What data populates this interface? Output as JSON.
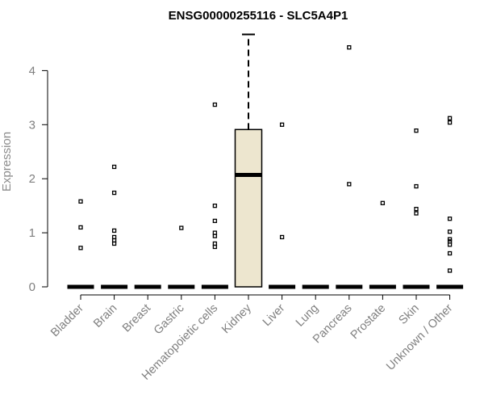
{
  "chart_data": {
    "type": "box",
    "title": "ENSG00000255116 - SLC5A4P1",
    "xlabel": "",
    "ylabel": "Expression",
    "ylim": [
      0,
      4.7
    ],
    "y_ticks": [
      0,
      1,
      2,
      3,
      4
    ],
    "grid": false,
    "categories": [
      "Bladder",
      "Brain",
      "Breast",
      "Gastric",
      "Hematopoietic cells",
      "Kidney",
      "Liver",
      "Lung",
      "Pancreas",
      "Prostate",
      "Skin",
      "Unknown / Other"
    ],
    "boxes": [
      {
        "category": "Bladder",
        "min": 0,
        "q1": 0,
        "median": 0,
        "q3": 0,
        "max": 0,
        "outliers": [
          0.72,
          1.1,
          1.58
        ]
      },
      {
        "category": "Brain",
        "min": 0,
        "q1": 0,
        "median": 0,
        "q3": 0,
        "max": 0,
        "outliers": [
          0.8,
          0.86,
          0.92,
          1.04,
          1.74,
          2.22
        ]
      },
      {
        "category": "Breast",
        "min": 0,
        "q1": 0,
        "median": 0,
        "q3": 0,
        "max": 0,
        "outliers": []
      },
      {
        "category": "Gastric",
        "min": 0,
        "q1": 0,
        "median": 0,
        "q3": 0,
        "max": 0,
        "outliers": [
          1.09
        ]
      },
      {
        "category": "Hematopoietic cells",
        "min": 0,
        "q1": 0,
        "median": 0,
        "q3": 0,
        "max": 0,
        "outliers": [
          0.74,
          0.8,
          0.94,
          1.0,
          1.22,
          1.5,
          3.37
        ]
      },
      {
        "category": "Kidney",
        "min": 0,
        "q1": 0,
        "median": 2.07,
        "q3": 2.91,
        "max": 4.67,
        "outliers": []
      },
      {
        "category": "Liver",
        "min": 0,
        "q1": 0,
        "median": 0,
        "q3": 0,
        "max": 0,
        "outliers": [
          0.92,
          3.0
        ]
      },
      {
        "category": "Lung",
        "min": 0,
        "q1": 0,
        "median": 0,
        "q3": 0,
        "max": 0,
        "outliers": []
      },
      {
        "category": "Pancreas",
        "min": 0,
        "q1": 0,
        "median": 0,
        "q3": 0,
        "max": 0,
        "outliers": [
          1.9,
          4.43
        ]
      },
      {
        "category": "Prostate",
        "min": 0,
        "q1": 0,
        "median": 0,
        "q3": 0,
        "max": 0,
        "outliers": [
          1.55
        ]
      },
      {
        "category": "Skin",
        "min": 0,
        "q1": 0,
        "median": 0,
        "q3": 0,
        "max": 0,
        "outliers": [
          1.36,
          1.44,
          1.86,
          2.89
        ]
      },
      {
        "category": "Unknown / Other",
        "min": 0,
        "q1": 0,
        "median": 0,
        "q3": 0,
        "max": 0,
        "outliers": [
          0.3,
          0.62,
          0.78,
          0.84,
          0.88,
          1.02,
          1.26,
          3.04,
          3.12
        ]
      }
    ],
    "colors": {
      "box_fill": "#ede6cf",
      "box_stroke": "#000000",
      "axis_text": "#7f7f7f"
    }
  }
}
